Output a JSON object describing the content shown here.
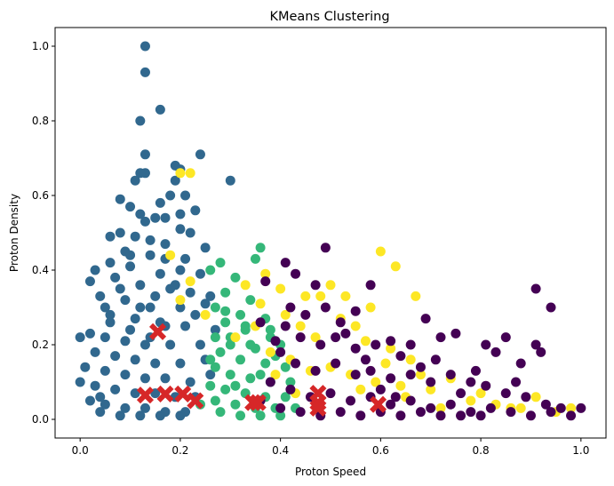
{
  "chart_data": {
    "type": "scatter",
    "title": "KMeans Clustering",
    "xlabel": "Proton Speed",
    "ylabel": "Proton Density",
    "xlim": [
      -0.05,
      1.05
    ],
    "ylim": [
      -0.05,
      1.05
    ],
    "xticks": [
      0.0,
      0.2,
      0.4,
      0.6,
      0.8,
      1.0
    ],
    "xtick_labels": [
      "0.0",
      "0.2",
      "0.4",
      "0.6",
      "0.8",
      "1.0"
    ],
    "yticks": [
      0.0,
      0.2,
      0.4,
      0.6,
      0.8,
      1.0
    ],
    "ytick_labels": [
      "0.0",
      "0.2",
      "0.4",
      "0.6",
      "0.8",
      "1.0"
    ],
    "grid": false,
    "legend": "none",
    "series": [
      {
        "color": "#31688e",
        "points": [
          [
            0.13,
            1.0
          ],
          [
            0.13,
            0.93
          ],
          [
            0.16,
            0.83
          ],
          [
            0.12,
            0.8
          ],
          [
            0.13,
            0.71
          ],
          [
            0.24,
            0.71
          ],
          [
            0.19,
            0.68
          ],
          [
            0.13,
            0.66
          ],
          [
            0.12,
            0.66
          ],
          [
            0.2,
            0.67
          ],
          [
            0.3,
            0.64
          ],
          [
            0.11,
            0.64
          ],
          [
            0.19,
            0.64
          ],
          [
            0.18,
            0.6
          ],
          [
            0.08,
            0.59
          ],
          [
            0.21,
            0.6
          ],
          [
            0.16,
            0.58
          ],
          [
            0.1,
            0.57
          ],
          [
            0.12,
            0.55
          ],
          [
            0.13,
            0.53
          ],
          [
            0.15,
            0.54
          ],
          [
            0.17,
            0.54
          ],
          [
            0.23,
            0.56
          ],
          [
            0.2,
            0.51
          ],
          [
            0.06,
            0.49
          ],
          [
            0.08,
            0.5
          ],
          [
            0.11,
            0.49
          ],
          [
            0.17,
            0.47
          ],
          [
            0.25,
            0.46
          ],
          [
            0.09,
            0.45
          ],
          [
            0.14,
            0.44
          ],
          [
            0.21,
            0.43
          ],
          [
            0.03,
            0.4
          ],
          [
            0.06,
            0.42
          ],
          [
            0.1,
            0.41
          ],
          [
            0.16,
            0.39
          ],
          [
            0.2,
            0.4
          ],
          [
            0.24,
            0.39
          ],
          [
            0.02,
            0.37
          ],
          [
            0.07,
            0.38
          ],
          [
            0.12,
            0.36
          ],
          [
            0.18,
            0.35
          ],
          [
            0.22,
            0.34
          ],
          [
            0.26,
            0.33
          ],
          [
            0.04,
            0.33
          ],
          [
            0.09,
            0.32
          ],
          [
            0.14,
            0.3
          ],
          [
            0.2,
            0.3
          ],
          [
            0.25,
            0.31
          ],
          [
            0.06,
            0.28
          ],
          [
            0.11,
            0.27
          ],
          [
            0.16,
            0.26
          ],
          [
            0.21,
            0.25
          ],
          [
            0.02,
            0.23
          ],
          [
            0.0,
            0.22
          ],
          [
            0.05,
            0.22
          ],
          [
            0.09,
            0.21
          ],
          [
            0.13,
            0.2
          ],
          [
            0.18,
            0.2
          ],
          [
            0.24,
            0.2
          ],
          [
            0.03,
            0.18
          ],
          [
            0.07,
            0.17
          ],
          [
            0.11,
            0.16
          ],
          [
            0.15,
            0.15
          ],
          [
            0.2,
            0.15
          ],
          [
            0.25,
            0.16
          ],
          [
            0.01,
            0.14
          ],
          [
            0.05,
            0.13
          ],
          [
            0.09,
            0.12
          ],
          [
            0.13,
            0.11
          ],
          [
            0.17,
            0.11
          ],
          [
            0.22,
            0.1
          ],
          [
            0.0,
            0.1
          ],
          [
            0.03,
            0.09
          ],
          [
            0.07,
            0.08
          ],
          [
            0.11,
            0.07
          ],
          [
            0.15,
            0.07
          ],
          [
            0.19,
            0.06
          ],
          [
            0.23,
            0.06
          ],
          [
            0.02,
            0.05
          ],
          [
            0.05,
            0.04
          ],
          [
            0.09,
            0.03
          ],
          [
            0.13,
            0.03
          ],
          [
            0.17,
            0.02
          ],
          [
            0.21,
            0.02
          ],
          [
            0.04,
            0.02
          ],
          [
            0.08,
            0.01
          ],
          [
            0.12,
            0.01
          ],
          [
            0.16,
            0.01
          ],
          [
            0.2,
            0.01
          ],
          [
            0.1,
            0.24
          ],
          [
            0.14,
            0.22
          ],
          [
            0.17,
            0.25
          ],
          [
            0.06,
            0.26
          ],
          [
            0.12,
            0.3
          ],
          [
            0.15,
            0.33
          ],
          [
            0.08,
            0.35
          ],
          [
            0.19,
            0.36
          ],
          [
            0.23,
            0.28
          ],
          [
            0.04,
            0.06
          ],
          [
            0.27,
            0.24
          ],
          [
            0.26,
            0.12
          ],
          [
            0.05,
            0.3
          ],
          [
            0.1,
            0.44
          ],
          [
            0.17,
            0.43
          ],
          [
            0.14,
            0.48
          ],
          [
            0.2,
            0.55
          ],
          [
            0.22,
            0.5
          ]
        ]
      },
      {
        "color": "#35b779",
        "points": [
          [
            0.36,
            0.46
          ],
          [
            0.35,
            0.43
          ],
          [
            0.28,
            0.42
          ],
          [
            0.26,
            0.4
          ],
          [
            0.31,
            0.38
          ],
          [
            0.29,
            0.34
          ],
          [
            0.34,
            0.32
          ],
          [
            0.27,
            0.3
          ],
          [
            0.32,
            0.28
          ],
          [
            0.37,
            0.27
          ],
          [
            0.29,
            0.26
          ],
          [
            0.33,
            0.24
          ],
          [
            0.38,
            0.22
          ],
          [
            0.27,
            0.22
          ],
          [
            0.3,
            0.2
          ],
          [
            0.35,
            0.19
          ],
          [
            0.4,
            0.2
          ],
          [
            0.28,
            0.18
          ],
          [
            0.32,
            0.16
          ],
          [
            0.37,
            0.15
          ],
          [
            0.41,
            0.14
          ],
          [
            0.27,
            0.14
          ],
          [
            0.3,
            0.12
          ],
          [
            0.34,
            0.11
          ],
          [
            0.38,
            0.1
          ],
          [
            0.42,
            0.1
          ],
          [
            0.26,
            0.09
          ],
          [
            0.29,
            0.08
          ],
          [
            0.33,
            0.07
          ],
          [
            0.37,
            0.06
          ],
          [
            0.41,
            0.06
          ],
          [
            0.27,
            0.05
          ],
          [
            0.31,
            0.04
          ],
          [
            0.35,
            0.03
          ],
          [
            0.39,
            0.03
          ],
          [
            0.43,
            0.03
          ],
          [
            0.28,
            0.02
          ],
          [
            0.32,
            0.01
          ],
          [
            0.36,
            0.01
          ],
          [
            0.4,
            0.01
          ],
          [
            0.3,
            0.22
          ],
          [
            0.34,
            0.2
          ],
          [
            0.26,
            0.16
          ],
          [
            0.36,
            0.12
          ],
          [
            0.31,
            0.09
          ],
          [
            0.24,
            0.04
          ],
          [
            0.39,
            0.17
          ],
          [
            0.29,
            0.29
          ],
          [
            0.33,
            0.25
          ],
          [
            0.38,
            0.24
          ]
        ]
      },
      {
        "color": "#fde725",
        "points": [
          [
            0.2,
            0.66
          ],
          [
            0.22,
            0.66
          ],
          [
            0.6,
            0.45
          ],
          [
            0.63,
            0.41
          ],
          [
            0.67,
            0.33
          ],
          [
            0.48,
            0.33
          ],
          [
            0.45,
            0.33
          ],
          [
            0.5,
            0.36
          ],
          [
            0.53,
            0.33
          ],
          [
            0.58,
            0.3
          ],
          [
            0.37,
            0.39
          ],
          [
            0.33,
            0.36
          ],
          [
            0.41,
            0.28
          ],
          [
            0.44,
            0.25
          ],
          [
            0.47,
            0.22
          ],
          [
            0.52,
            0.27
          ],
          [
            0.55,
            0.25
          ],
          [
            0.57,
            0.21
          ],
          [
            0.62,
            0.19
          ],
          [
            0.66,
            0.16
          ],
          [
            0.38,
            0.18
          ],
          [
            0.42,
            0.16
          ],
          [
            0.46,
            0.13
          ],
          [
            0.5,
            0.14
          ],
          [
            0.54,
            0.12
          ],
          [
            0.59,
            0.1
          ],
          [
            0.64,
            0.09
          ],
          [
            0.7,
            0.08
          ],
          [
            0.74,
            0.11
          ],
          [
            0.78,
            0.05
          ],
          [
            0.83,
            0.04
          ],
          [
            0.88,
            0.03
          ],
          [
            0.91,
            0.06
          ],
          [
            0.95,
            0.02
          ],
          [
            0.98,
            0.03
          ],
          [
            0.72,
            0.03
          ],
          [
            0.68,
            0.12
          ],
          [
            0.61,
            0.15
          ],
          [
            0.56,
            0.08
          ],
          [
            0.43,
            0.07
          ],
          [
            0.39,
            0.12
          ],
          [
            0.35,
            0.25
          ],
          [
            0.36,
            0.31
          ],
          [
            0.4,
            0.35
          ],
          [
            0.31,
            0.22
          ],
          [
            0.18,
            0.44
          ],
          [
            0.2,
            0.32
          ],
          [
            0.22,
            0.37
          ],
          [
            0.25,
            0.28
          ],
          [
            0.86,
            0.03
          ],
          [
            0.8,
            0.07
          ],
          [
            0.65,
            0.06
          ]
        ]
      },
      {
        "color": "#440154",
        "points": [
          [
            0.49,
            0.46
          ],
          [
            0.41,
            0.42
          ],
          [
            0.37,
            0.37
          ],
          [
            0.43,
            0.39
          ],
          [
            0.47,
            0.36
          ],
          [
            0.42,
            0.3
          ],
          [
            0.45,
            0.28
          ],
          [
            0.49,
            0.3
          ],
          [
            0.52,
            0.26
          ],
          [
            0.55,
            0.29
          ],
          [
            0.41,
            0.25
          ],
          [
            0.44,
            0.22
          ],
          [
            0.48,
            0.2
          ],
          [
            0.51,
            0.22
          ],
          [
            0.55,
            0.19
          ],
          [
            0.59,
            0.2
          ],
          [
            0.62,
            0.21
          ],
          [
            0.66,
            0.2
          ],
          [
            0.69,
            0.27
          ],
          [
            0.72,
            0.22
          ],
          [
            0.75,
            0.23
          ],
          [
            0.81,
            0.2
          ],
          [
            0.83,
            0.18
          ],
          [
            0.85,
            0.22
          ],
          [
            0.88,
            0.15
          ],
          [
            0.91,
            0.35
          ],
          [
            0.94,
            0.3
          ],
          [
            0.91,
            0.2
          ],
          [
            0.92,
            0.18
          ],
          [
            0.87,
            0.1
          ],
          [
            0.4,
            0.18
          ],
          [
            0.43,
            0.15
          ],
          [
            0.47,
            0.13
          ],
          [
            0.51,
            0.15
          ],
          [
            0.55,
            0.12
          ],
          [
            0.58,
            0.13
          ],
          [
            0.62,
            0.11
          ],
          [
            0.66,
            0.12
          ],
          [
            0.7,
            0.1
          ],
          [
            0.74,
            0.12
          ],
          [
            0.78,
            0.1
          ],
          [
            0.81,
            0.09
          ],
          [
            0.85,
            0.07
          ],
          [
            0.89,
            0.06
          ],
          [
            0.93,
            0.04
          ],
          [
            0.96,
            0.03
          ],
          [
            1.0,
            0.03
          ],
          [
            0.38,
            0.1
          ],
          [
            0.42,
            0.08
          ],
          [
            0.46,
            0.06
          ],
          [
            0.5,
            0.07
          ],
          [
            0.54,
            0.05
          ],
          [
            0.58,
            0.06
          ],
          [
            0.62,
            0.04
          ],
          [
            0.66,
            0.05
          ],
          [
            0.7,
            0.03
          ],
          [
            0.74,
            0.04
          ],
          [
            0.78,
            0.02
          ],
          [
            0.82,
            0.03
          ],
          [
            0.86,
            0.02
          ],
          [
            0.9,
            0.01
          ],
          [
            0.94,
            0.02
          ],
          [
            0.98,
            0.01
          ],
          [
            0.4,
            0.03
          ],
          [
            0.44,
            0.02
          ],
          [
            0.48,
            0.01
          ],
          [
            0.52,
            0.02
          ],
          [
            0.56,
            0.01
          ],
          [
            0.6,
            0.02
          ],
          [
            0.64,
            0.01
          ],
          [
            0.68,
            0.02
          ],
          [
            0.72,
            0.01
          ],
          [
            0.76,
            0.01
          ],
          [
            0.8,
            0.01
          ],
          [
            0.36,
            0.05
          ],
          [
            0.39,
            0.21
          ],
          [
            0.53,
            0.23
          ],
          [
            0.57,
            0.16
          ],
          [
            0.6,
            0.08
          ],
          [
            0.64,
            0.17
          ],
          [
            0.68,
            0.14
          ],
          [
            0.71,
            0.16
          ],
          [
            0.76,
            0.07
          ],
          [
            0.79,
            0.13
          ],
          [
            0.36,
            0.26
          ],
          [
            0.58,
            0.36
          ],
          [
            0.63,
            0.06
          ]
        ]
      }
    ],
    "centroids": {
      "color": "#d62728",
      "marker": "X",
      "points": [
        [
          0.155,
          0.235
        ],
        [
          0.13,
          0.065
        ],
        [
          0.17,
          0.068
        ],
        [
          0.205,
          0.068
        ],
        [
          0.23,
          0.05
        ],
        [
          0.345,
          0.045
        ],
        [
          0.355,
          0.045
        ],
        [
          0.475,
          0.07
        ],
        [
          0.475,
          0.045
        ],
        [
          0.475,
          0.03
        ],
        [
          0.595,
          0.04
        ]
      ]
    }
  }
}
